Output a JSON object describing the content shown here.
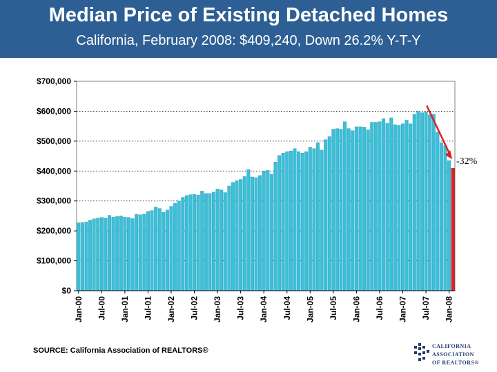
{
  "header": {
    "title": "Median Price of Existing Detached Homes",
    "subtitle": "California, February 2008: $409,240, Down 26.2% Y-T-Y"
  },
  "chart_data": {
    "type": "bar",
    "title": "Median Price of Existing Detached Homes",
    "ylim": [
      0,
      700000
    ],
    "y_ticks": [
      {
        "value": 0,
        "label": "$0"
      },
      {
        "value": 100000,
        "label": "$100,000"
      },
      {
        "value": 200000,
        "label": "$200,000"
      },
      {
        "value": 300000,
        "label": "$300,000"
      },
      {
        "value": 400000,
        "label": "$400,000"
      },
      {
        "value": 500000,
        "label": "$500,000"
      },
      {
        "value": 600000,
        "label": "$600,000"
      },
      {
        "value": 700000,
        "label": "$700,000"
      }
    ],
    "x_tick_labels": [
      "Jan-00",
      "Jul-00",
      "Jan-01",
      "Jul-01",
      "Jan-02",
      "Jul-02",
      "Jan-03",
      "Jul-03",
      "Jan-04",
      "Jul-04",
      "Jan-05",
      "Jul-05",
      "Jan-06",
      "Jul-06",
      "Jan-07",
      "Jul-07",
      "Jan-08"
    ],
    "series": [
      {
        "name": "Median Price",
        "color": "#3cbfd8",
        "highlight_color": "#e02020",
        "highlight_index": 97,
        "values": [
          227000,
          228000,
          230000,
          236000,
          240000,
          243000,
          245000,
          243000,
          252000,
          246000,
          248000,
          250000,
          246000,
          245000,
          241000,
          255000,
          254000,
          256000,
          265000,
          268000,
          280000,
          275000,
          262000,
          270000,
          282000,
          292000,
          300000,
          312000,
          318000,
          321000,
          322000,
          320000,
          333000,
          325000,
          325000,
          330000,
          340000,
          337000,
          328000,
          350000,
          362000,
          368000,
          372000,
          382000,
          405000,
          380000,
          378000,
          385000,
          400000,
          402000,
          390000,
          430000,
          452000,
          460000,
          465000,
          467000,
          475000,
          465000,
          460000,
          465000,
          480000,
          475000,
          495000,
          470000,
          505000,
          515000,
          540000,
          542000,
          540000,
          565000,
          542000,
          535000,
          548000,
          548000,
          547000,
          538000,
          563000,
          563000,
          565000,
          575000,
          560000,
          578000,
          555000,
          553000,
          558000,
          570000,
          558000,
          590000,
          600000,
          595000,
          598000,
          588000,
          590000,
          530000,
          495000,
          485000,
          435000,
          409240
        ]
      }
    ],
    "annotation": {
      "text": "-32%"
    }
  },
  "footer": {
    "source": "SOURCE: California Association of REALTORS®",
    "logo_lines": [
      "CALIFORNIA",
      "ASSOCIATION",
      "OF REALTORS®"
    ]
  }
}
